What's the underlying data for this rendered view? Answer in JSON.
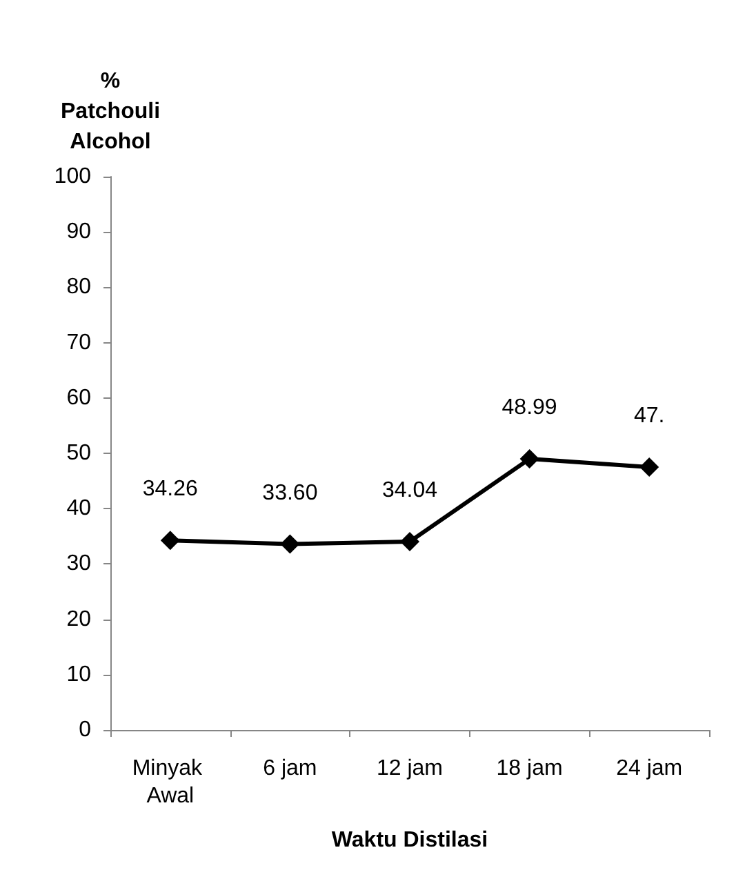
{
  "chart_data": {
    "type": "line",
    "ylabel": "% Patchouli Alcohol",
    "xlabel": "Waktu Distilasi",
    "categories": [
      "Minyak Awal",
      "6 jam",
      "12 jam",
      "18 jam",
      "24 jam"
    ],
    "values": [
      34.26,
      33.6,
      34.04,
      48.99,
      47.5
    ],
    "value_labels": [
      "34.26",
      "33.60",
      "34.04",
      "48.99",
      "47."
    ],
    "color": "#000000",
    "ylim": [
      0,
      100
    ],
    "yticks": [
      0,
      10,
      20,
      30,
      40,
      50,
      60,
      70,
      80,
      90,
      100
    ],
    "grid": false,
    "marker": "diamond",
    "line_style": "solid"
  }
}
